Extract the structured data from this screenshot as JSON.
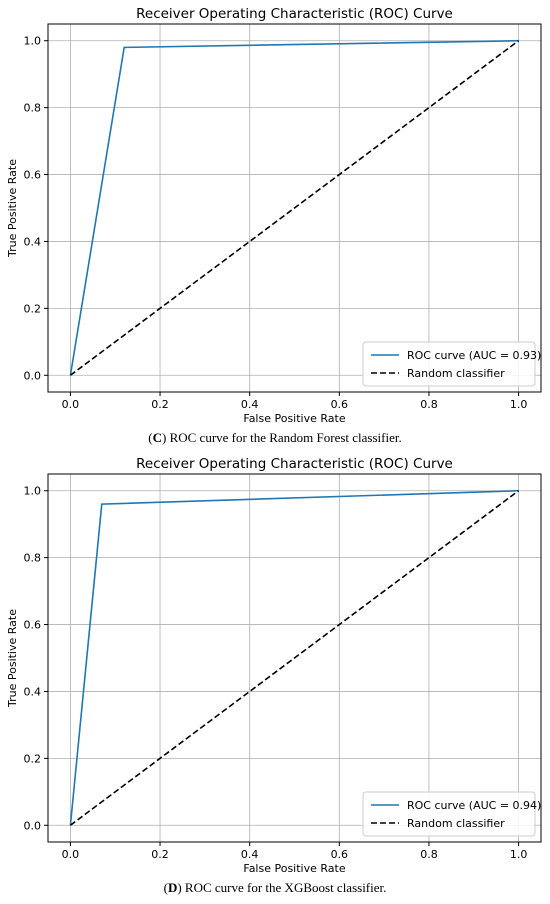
{
  "chart_data": [
    {
      "type": "line",
      "title": "Receiver Operating Characteristic (ROC) Curve",
      "xlabel": "False Positive Rate",
      "ylabel": "True Positive Rate",
      "xlim": [
        -0.05,
        1.05
      ],
      "ylim": [
        -0.05,
        1.05
      ],
      "xticks": [
        "0.0",
        "0.2",
        "0.4",
        "0.6",
        "0.8",
        "1.0"
      ],
      "yticks": [
        "0.0",
        "0.2",
        "0.4",
        "0.6",
        "0.8",
        "1.0"
      ],
      "grid": true,
      "legend_position": "lower-right",
      "series": [
        {
          "name": "ROC curve (AUC = 0.93)",
          "x": [
            0.0,
            0.12,
            1.0
          ],
          "y": [
            0.0,
            0.98,
            1.0
          ],
          "color": "#1f77b4",
          "style": "solid"
        },
        {
          "name": "Random classifier",
          "x": [
            0.0,
            1.0
          ],
          "y": [
            0.0,
            1.0
          ],
          "color": "#000000",
          "style": "dashed"
        }
      ],
      "caption_label": "C",
      "caption_text": " ROC curve for the Random Forest classifier."
    },
    {
      "type": "line",
      "title": "Receiver Operating Characteristic (ROC) Curve",
      "xlabel": "False Positive Rate",
      "ylabel": "True Positive Rate",
      "xlim": [
        -0.05,
        1.05
      ],
      "ylim": [
        -0.05,
        1.05
      ],
      "xticks": [
        "0.0",
        "0.2",
        "0.4",
        "0.6",
        "0.8",
        "1.0"
      ],
      "yticks": [
        "0.0",
        "0.2",
        "0.4",
        "0.6",
        "0.8",
        "1.0"
      ],
      "grid": true,
      "legend_position": "lower-right",
      "series": [
        {
          "name": "ROC curve (AUC = 0.94)",
          "x": [
            0.0,
            0.07,
            1.0
          ],
          "y": [
            0.0,
            0.96,
            1.0
          ],
          "color": "#1f77b4",
          "style": "solid"
        },
        {
          "name": "Random classifier",
          "x": [
            0.0,
            1.0
          ],
          "y": [
            0.0,
            1.0
          ],
          "color": "#000000",
          "style": "dashed"
        }
      ],
      "caption_label": "D",
      "caption_text": " ROC curve for the XGBoost classifier."
    }
  ]
}
